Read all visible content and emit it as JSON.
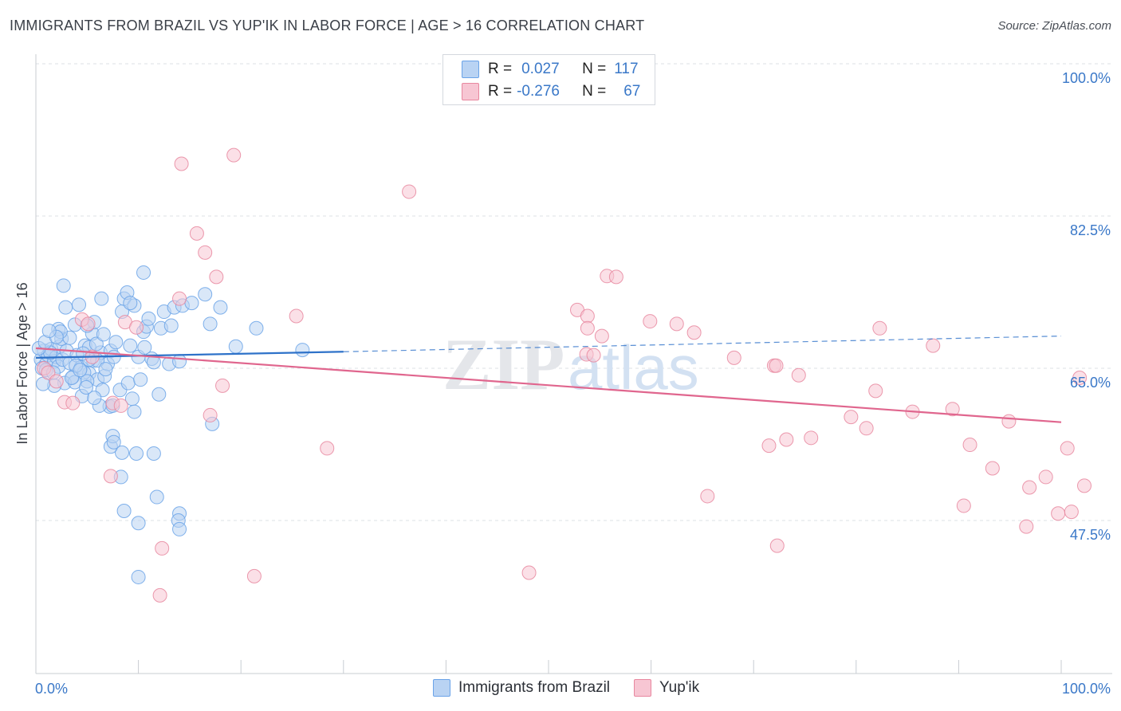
{
  "title": "IMMIGRANTS FROM BRAZIL VS YUP'IK IN LABOR FORCE | AGE > 16 CORRELATION CHART",
  "source": "Source: ZipAtlas.com",
  "watermark": {
    "zip": "ZIP",
    "atlas": "atlas"
  },
  "legend": {
    "rows": [
      {
        "r_label": "R =",
        "r_value": "0.027",
        "n_label": "N =",
        "n_value": "117"
      },
      {
        "r_label": "R =",
        "r_value": "-0.276",
        "n_label": "N =",
        "n_value": "67"
      }
    ]
  },
  "chart_data": {
    "type": "scatter",
    "title": "IMMIGRANTS FROM BRAZIL VS YUP'IK IN LABOR FORCE | AGE > 16 CORRELATION CHART",
    "xlabel": "",
    "ylabel": "In Labor Force | Age > 16",
    "xlim": [
      0,
      100
    ],
    "ylim": [
      30,
      102
    ],
    "x_tick_labels": [
      "0.0%",
      "100.0%"
    ],
    "y_ticks": [
      47.5,
      65.0,
      82.5,
      100.0
    ],
    "y_tick_labels": [
      "47.5%",
      "65.0%",
      "82.5%",
      "100.0%"
    ],
    "grid": true,
    "series": [
      {
        "name": "Immigrants from Brazil",
        "color": "#6aa3e8",
        "fill": "#b9d3f3",
        "n": 117,
        "r": 0.027,
        "trend": {
          "x0": 0,
          "y0": 66.2,
          "x1": 30,
          "y1": 66.9,
          "dash_to_x": 100,
          "dash_to_y": 68.7
        },
        "points": [
          [
            0.5,
            66
          ],
          [
            0.8,
            67
          ],
          [
            1,
            65.5
          ],
          [
            1.2,
            66.5
          ],
          [
            1.5,
            67.2
          ],
          [
            1.8,
            65.8
          ],
          [
            2,
            66.3
          ],
          [
            2.3,
            67.5
          ],
          [
            0.6,
            65
          ],
          [
            1,
            64.8
          ],
          [
            1.4,
            66.8
          ],
          [
            2.2,
            65.2
          ],
          [
            2.6,
            66
          ],
          [
            3,
            67
          ],
          [
            3.3,
            65.6
          ],
          [
            0.3,
            67.3
          ],
          [
            0.9,
            68
          ],
          [
            1.7,
            64.5
          ],
          [
            2.5,
            68.4
          ],
          [
            3.6,
            64
          ],
          [
            4,
            66.5
          ],
          [
            4.4,
            65.1
          ],
          [
            4.8,
            67.6
          ],
          [
            5.2,
            64.4
          ],
          [
            5.6,
            65.9
          ],
          [
            6,
            63.7
          ],
          [
            6.3,
            66.8
          ],
          [
            6.7,
            64.1
          ],
          [
            7,
            65.5
          ],
          [
            7.3,
            67
          ],
          [
            2.2,
            69.5
          ],
          [
            2.8,
            63.3
          ],
          [
            3.3,
            68.5
          ],
          [
            3.8,
            70
          ],
          [
            4.2,
            72.3
          ],
          [
            4.7,
            64.5
          ],
          [
            5,
            63.5
          ],
          [
            5.5,
            69
          ],
          [
            6,
            65.9
          ],
          [
            6.5,
            62.5
          ],
          [
            1.8,
            63
          ],
          [
            2.4,
            69.2
          ],
          [
            2.7,
            74.5
          ],
          [
            2.9,
            72
          ],
          [
            3.8,
            63.4
          ],
          [
            4.5,
            61.8
          ],
          [
            5.2,
            66
          ],
          [
            5.7,
            70.3
          ],
          [
            6.4,
            73
          ],
          [
            6.8,
            64.9
          ],
          [
            7.2,
            60.6
          ],
          [
            7.6,
            66.3
          ],
          [
            7.8,
            68
          ],
          [
            8.4,
            71.5
          ],
          [
            8.6,
            73
          ],
          [
            9.6,
            72.2
          ],
          [
            8.2,
            62.5
          ],
          [
            7.5,
            60.7
          ],
          [
            6.2,
            60.7
          ],
          [
            5.7,
            61.6
          ],
          [
            8.9,
            73.7
          ],
          [
            9.2,
            72.5
          ],
          [
            9,
            63.3
          ],
          [
            9.4,
            61.5
          ],
          [
            9.6,
            60
          ],
          [
            10,
            66.3
          ],
          [
            10.2,
            63.7
          ],
          [
            10.5,
            69.2
          ],
          [
            10.8,
            69.8
          ],
          [
            11,
            70.7
          ],
          [
            12.2,
            69.6
          ],
          [
            12.5,
            71.5
          ],
          [
            13.2,
            69.9
          ],
          [
            11.3,
            66.1
          ],
          [
            11.5,
            65.7
          ],
          [
            12,
            62
          ],
          [
            13.5,
            72
          ],
          [
            14.3,
            72.2
          ],
          [
            15.2,
            72.5
          ],
          [
            16.5,
            73.5
          ],
          [
            17,
            70.1
          ],
          [
            17.2,
            58.6
          ],
          [
            18,
            72
          ],
          [
            19.5,
            67.5
          ],
          [
            21.5,
            69.6
          ],
          [
            13,
            65.5
          ],
          [
            14,
            65.8
          ],
          [
            26,
            67.1
          ],
          [
            10.5,
            76
          ],
          [
            8.3,
            52.5
          ],
          [
            8.4,
            55.3
          ],
          [
            7.3,
            56
          ],
          [
            7.5,
            57.2
          ],
          [
            9.8,
            55.2
          ],
          [
            11.5,
            55.2
          ],
          [
            7.6,
            56.5
          ],
          [
            10,
            47.2
          ],
          [
            11.8,
            50.2
          ],
          [
            14,
            48.3
          ],
          [
            13.9,
            47.5
          ],
          [
            10,
            41
          ],
          [
            14,
            46.5
          ],
          [
            8.6,
            48.6
          ],
          [
            5.2,
            67.4
          ],
          [
            4.6,
            66.7
          ],
          [
            3.9,
            65.3
          ],
          [
            3.5,
            63.9
          ],
          [
            5,
            69.9
          ],
          [
            5.9,
            67.8
          ],
          [
            6.6,
            68.9
          ],
          [
            4.3,
            64.8
          ],
          [
            4.9,
            62.8
          ],
          [
            2,
            68.6
          ],
          [
            1.3,
            69.3
          ],
          [
            0.7,
            63.2
          ],
          [
            9.2,
            67.6
          ],
          [
            10.6,
            67.4
          ]
        ]
      },
      {
        "name": "Yup'ik",
        "color": "#e8879f",
        "fill": "#f7c6d3",
        "n": 67,
        "r": -0.276,
        "trend": {
          "x0": 0,
          "y0": 67.3,
          "x1": 100,
          "y1": 58.8
        },
        "points": [
          [
            0.8,
            65
          ],
          [
            1.2,
            64.5
          ],
          [
            2,
            63.5
          ],
          [
            2.8,
            61.1
          ],
          [
            3.6,
            61
          ],
          [
            4.5,
            70.6
          ],
          [
            5.1,
            70.1
          ],
          [
            5.5,
            66.3
          ],
          [
            7.5,
            61
          ],
          [
            7.3,
            52.6
          ],
          [
            8.3,
            60.7
          ],
          [
            8.7,
            70.3
          ],
          [
            9.8,
            69.7
          ],
          [
            12.1,
            38.9
          ],
          [
            12.3,
            44.3
          ],
          [
            14,
            73
          ],
          [
            14.2,
            88.5
          ],
          [
            15.7,
            80.5
          ],
          [
            17,
            59.6
          ],
          [
            16.5,
            78.3
          ],
          [
            17.6,
            75.5
          ],
          [
            18.2,
            63
          ],
          [
            19.3,
            89.5
          ],
          [
            21.3,
            41.1
          ],
          [
            25.4,
            71
          ],
          [
            28.4,
            55.8
          ],
          [
            36.4,
            85.3
          ],
          [
            48.1,
            41.5
          ],
          [
            52.8,
            71.7
          ],
          [
            53.8,
            71
          ],
          [
            53.7,
            66.6
          ],
          [
            54.4,
            66.5
          ],
          [
            53.8,
            69.6
          ],
          [
            55.2,
            68.7
          ],
          [
            55.7,
            75.6
          ],
          [
            56.6,
            75.5
          ],
          [
            59.9,
            70.4
          ],
          [
            62.5,
            70.1
          ],
          [
            64.2,
            69.1
          ],
          [
            65.5,
            50.3
          ],
          [
            68.1,
            66.2
          ],
          [
            72,
            65.3
          ],
          [
            74.4,
            64.2
          ],
          [
            72.3,
            44.6
          ],
          [
            72.2,
            65.3
          ],
          [
            71.5,
            56.1
          ],
          [
            73.2,
            56.8
          ],
          [
            75.6,
            57
          ],
          [
            79.5,
            59.4
          ],
          [
            81,
            58.1
          ],
          [
            81.9,
            62.4
          ],
          [
            82.3,
            69.6
          ],
          [
            85.5,
            60
          ],
          [
            87.5,
            67.6
          ],
          [
            89.4,
            60.3
          ],
          [
            90.5,
            49.2
          ],
          [
            91.1,
            56.2
          ],
          [
            93.3,
            53.5
          ],
          [
            94.9,
            58.9
          ],
          [
            96.6,
            46.8
          ],
          [
            96.9,
            51.3
          ],
          [
            98.5,
            52.5
          ],
          [
            99.7,
            48.3
          ],
          [
            100.6,
            55.8
          ],
          [
            101,
            48.5
          ],
          [
            103.4,
            51.5
          ],
          [
            101.8,
            63.9
          ]
        ]
      }
    ]
  }
}
